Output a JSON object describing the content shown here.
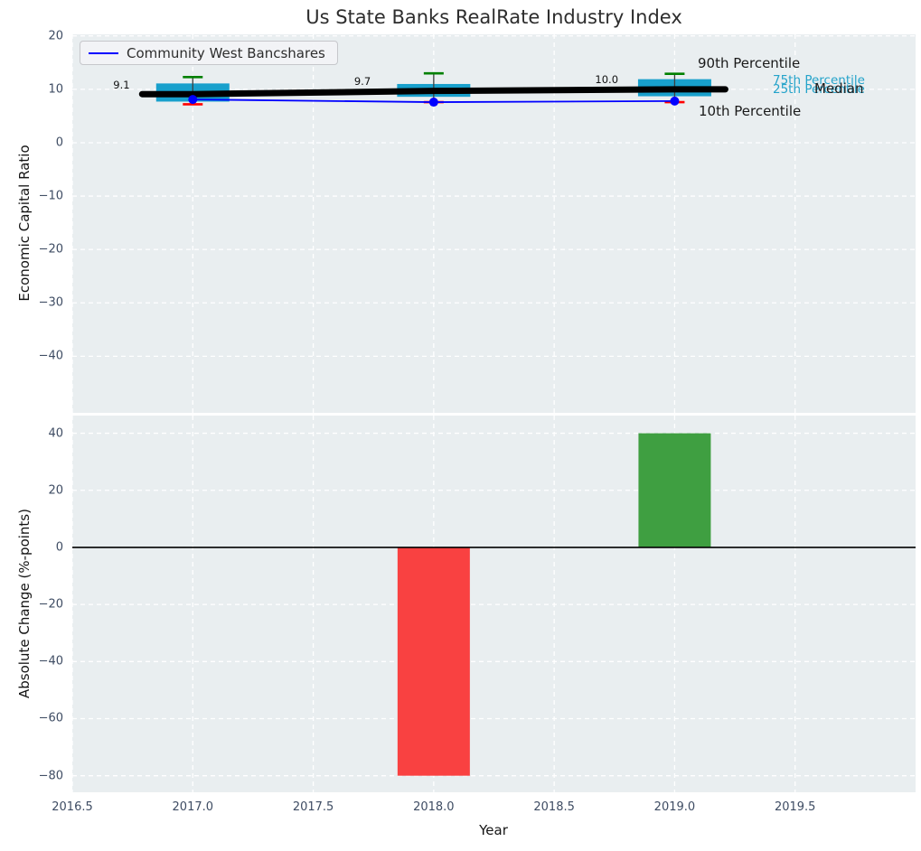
{
  "title": "Us State Banks RealRate Industry Index",
  "colors": {
    "axes_background": "#e9eef0",
    "grid": "#ffffff",
    "box_fill": "#18a0cc",
    "whisker": "#3d3d3d",
    "cap_90th": "#008000",
    "cap_10th": "#ff0000",
    "median_line": "#000000",
    "company_line": "#0000ff",
    "bar_negative": "#f94141",
    "bar_positive": "#3f9f41",
    "tick_label": "#3e4c63",
    "percentile_annotation_cyan": "#24a3ca",
    "annotation_black": "#1a1a1a"
  },
  "legend": {
    "label": "Community West Bancshares"
  },
  "chart_data": [
    {
      "type": "box-timeseries-with-line",
      "title": "Us State Banks RealRate Industry Index",
      "xlabel": "",
      "ylabel": "Economic Capital Ratio",
      "xlim": [
        2016.5,
        2020.0
      ],
      "ylim": [
        -50.6,
        20.3
      ],
      "xtick_labels": [
        "2016.5",
        "2017.0",
        "2017.5",
        "2018.0",
        "2018.5",
        "2019.0",
        "2019.5"
      ],
      "xticks_shown_on_this_axes": false,
      "yticks": [
        20,
        10,
        0,
        -10,
        -20,
        -30,
        -40
      ],
      "grid": "white dashed",
      "legend_position": "upper left",
      "legend_entries": [
        "Community West Bancshares"
      ],
      "percentile_boxes": [
        {
          "year": 2017,
          "p10": 7.2,
          "p25": 7.7,
          "median": 9.1,
          "p75": 11.1,
          "p90": 12.3
        },
        {
          "year": 2018,
          "p10": 7.6,
          "p25": 8.6,
          "median": 9.7,
          "p75": 11.0,
          "p90": 13.0
        },
        {
          "year": 2019,
          "p10": 7.6,
          "p25": 8.7,
          "median": 10.0,
          "p75": 11.9,
          "p90": 12.9
        }
      ],
      "median_value_labels": [
        "9.1",
        "9.7",
        "10.0"
      ],
      "series": [
        {
          "name": "Community West Bancshares",
          "x": [
            2017,
            2018,
            2019
          ],
          "values": [
            8.1,
            7.6,
            7.8
          ]
        }
      ],
      "annotations": [
        "90th Percentile",
        "75th Percentile",
        "25th Percentile",
        "Median",
        "10th Percentile"
      ]
    },
    {
      "type": "bar",
      "title": "",
      "xlabel": "Year",
      "ylabel": "Absolute Change (%-points)",
      "xlim": [
        2016.5,
        2020.0
      ],
      "ylim": [
        -85.8,
        46.2
      ],
      "xtick_labels": [
        "2016.5",
        "2017.0",
        "2017.5",
        "2018.0",
        "2018.5",
        "2019.0",
        "2019.5"
      ],
      "yticks": [
        40,
        20,
        0,
        -20,
        -40,
        -60,
        -80
      ],
      "grid": "white dashed",
      "x": [
        2018,
        2019
      ],
      "values": [
        -80,
        40
      ],
      "zero_line": true
    }
  ]
}
